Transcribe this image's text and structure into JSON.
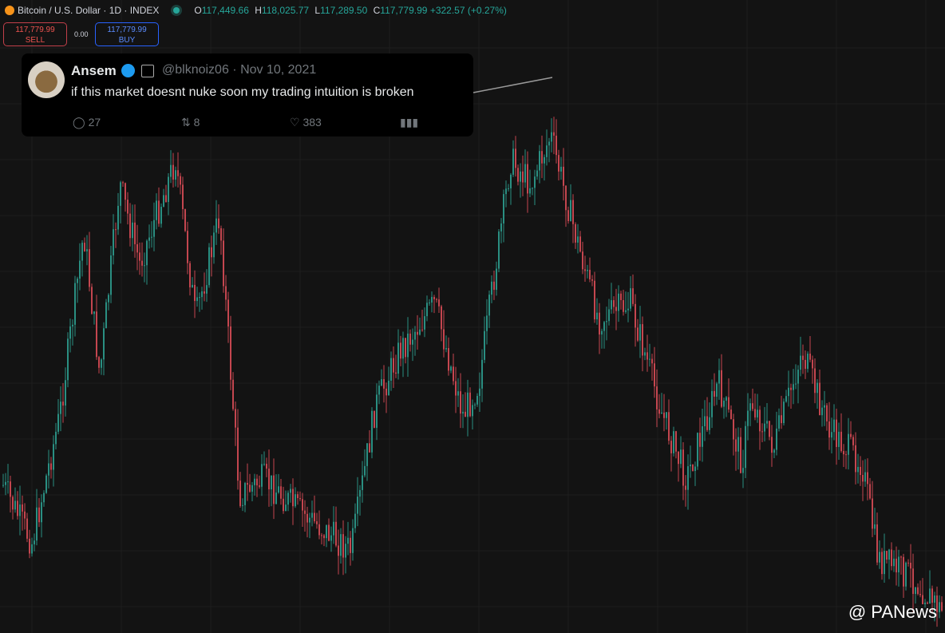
{
  "header": {
    "symbol": "Bitcoin / U.S. Dollar · 1D · INDEX",
    "open_label": "O",
    "open": "117,449.66",
    "high_label": "H",
    "high": "118,025.77",
    "low_label": "L",
    "low": "117,289.50",
    "close_label": "C",
    "close": "117,779.99",
    "change": "+322.57 (+0.27%)"
  },
  "trade": {
    "sell_price": "117,779.99",
    "sell_label": "SELL",
    "spread": "0.00",
    "buy_price": "117,779.99",
    "buy_label": "BUY"
  },
  "tweet": {
    "name": "Ansem",
    "handle": "@blknoiz06",
    "date": "Nov 10, 2021",
    "text": "if this market doesnt nuke soon my trading intuition is broken",
    "replies": "27",
    "retweets": "8",
    "likes": "383"
  },
  "watermark": {
    "text": "@ PANews"
  }
}
